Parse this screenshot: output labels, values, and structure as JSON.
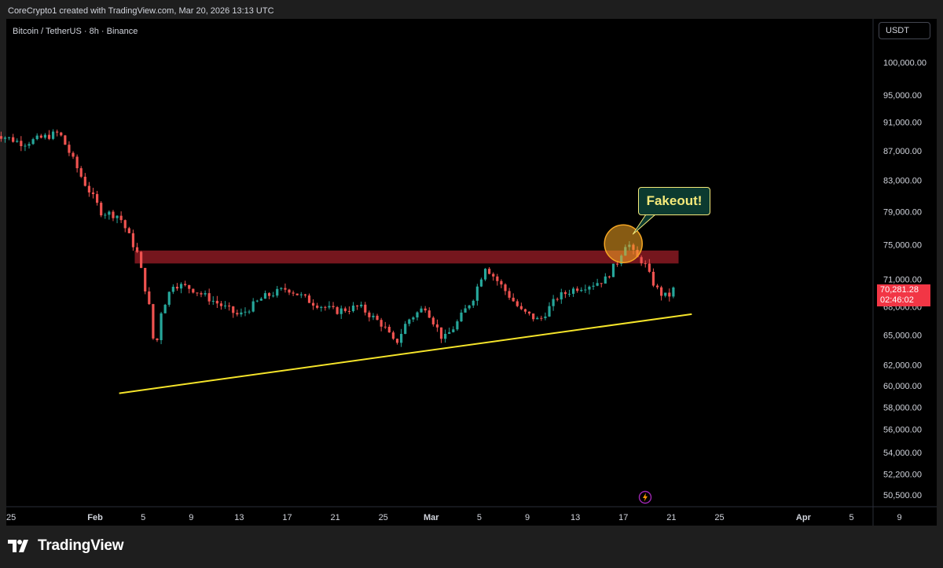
{
  "header": {
    "credit": "CoreCrypto1 created with TradingView.com, Mar 20, 2026 13:13 UTC"
  },
  "legend": {
    "symbol": "Bitcoin / TetherUS · 8h · Binance"
  },
  "toolbar": {
    "currency": "USDT"
  },
  "price_label": {
    "price": "70,281.28",
    "countdown": "02:46:02",
    "color": "#f23645"
  },
  "annotation": {
    "text": "Fakeout!"
  },
  "footer": {
    "brand": "TradingView"
  },
  "colors": {
    "up": "#26a69a",
    "down": "#ef5350",
    "resistance_zone": "#8a1a22",
    "trendline": "#f5e42a",
    "highlight_circle": "#f5a623"
  },
  "chart_data": {
    "type": "candlestick",
    "title": "",
    "xlabel": "",
    "ylabel": "",
    "y_scale": "log",
    "ylim": [
      50000,
      104000
    ],
    "xlim": [
      -7.4,
      64.8
    ],
    "y_ticks": [
      "100,000.00",
      "95,000.00",
      "91,000.00",
      "87,000.00",
      "83,000.00",
      "79,000.00",
      "75,000.00",
      "71,000.00",
      "68,000.00",
      "65,000.00",
      "62,000.00",
      "60,000.00",
      "58,000.00",
      "56,000.00",
      "54,000.00",
      "52,200.00",
      "50,500.00"
    ],
    "x_ticks": [
      {
        "label": "25",
        "day": -7
      },
      {
        "label": "Feb",
        "day": 0
      },
      {
        "label": "5",
        "day": 4
      },
      {
        "label": "9",
        "day": 8
      },
      {
        "label": "13",
        "day": 12
      },
      {
        "label": "17",
        "day": 16
      },
      {
        "label": "21",
        "day": 20
      },
      {
        "label": "25",
        "day": 24
      },
      {
        "label": "Mar",
        "day": 28
      },
      {
        "label": "5",
        "day": 32
      },
      {
        "label": "9",
        "day": 36
      },
      {
        "label": "13",
        "day": 40
      },
      {
        "label": "17",
        "day": 44
      },
      {
        "label": "21",
        "day": 48
      },
      {
        "label": "25",
        "day": 52
      },
      {
        "label": "Apr",
        "day": 59
      },
      {
        "label": "5",
        "day": 63
      },
      {
        "label": "9",
        "day": 67
      }
    ],
    "x_units": "days from Feb 1, 2026",
    "resistance_zone": {
      "x_from": 3.3,
      "x_to": 48.6,
      "y_low": 72800,
      "y_high": 74300
    },
    "trendline": {
      "x1": 2.0,
      "y1": 59300,
      "x2": 49.7,
      "y2": 67200
    },
    "highlight": {
      "x": 44.0,
      "y": 75100
    },
    "key_points": [
      {
        "day": -8.5,
        "price": 89500
      },
      {
        "day": -6.0,
        "price": 88000
      },
      {
        "day": -3.0,
        "price": 89500
      },
      {
        "day": -1.0,
        "price": 83000
      },
      {
        "day": 0.5,
        "price": 79000
      },
      {
        "day": 2.0,
        "price": 78500
      },
      {
        "day": 3.5,
        "price": 74000
      },
      {
        "day": 4.5,
        "price": 68000
      },
      {
        "day": 5.0,
        "price": 63000
      },
      {
        "day": 5.5,
        "price": 67500
      },
      {
        "day": 6.5,
        "price": 70500
      },
      {
        "day": 8.0,
        "price": 70000
      },
      {
        "day": 10.0,
        "price": 68500
      },
      {
        "day": 12.0,
        "price": 67000
      },
      {
        "day": 14.0,
        "price": 69000
      },
      {
        "day": 16.0,
        "price": 70000
      },
      {
        "day": 18.0,
        "price": 68500
      },
      {
        "day": 20.0,
        "price": 67500
      },
      {
        "day": 22.0,
        "price": 68000
      },
      {
        "day": 24.0,
        "price": 66000
      },
      {
        "day": 25.0,
        "price": 64000
      },
      {
        "day": 26.0,
        "price": 66500
      },
      {
        "day": 27.5,
        "price": 68000
      },
      {
        "day": 29.0,
        "price": 64500
      },
      {
        "day": 30.0,
        "price": 66000
      },
      {
        "day": 31.5,
        "price": 69000
      },
      {
        "day": 32.5,
        "price": 72500
      },
      {
        "day": 34.0,
        "price": 70000
      },
      {
        "day": 35.5,
        "price": 67500
      },
      {
        "day": 37.0,
        "price": 66500
      },
      {
        "day": 38.5,
        "price": 69000
      },
      {
        "day": 40.0,
        "price": 70000
      },
      {
        "day": 41.5,
        "price": 70500
      },
      {
        "day": 42.5,
        "price": 71000
      },
      {
        "day": 43.5,
        "price": 73000
      },
      {
        "day": 44.3,
        "price": 75500
      },
      {
        "day": 45.0,
        "price": 73500
      },
      {
        "day": 45.7,
        "price": 73000
      },
      {
        "day": 46.3,
        "price": 71000
      },
      {
        "day": 47.0,
        "price": 69500
      },
      {
        "day": 47.7,
        "price": 69000
      },
      {
        "day": 48.4,
        "price": 70300
      }
    ]
  }
}
